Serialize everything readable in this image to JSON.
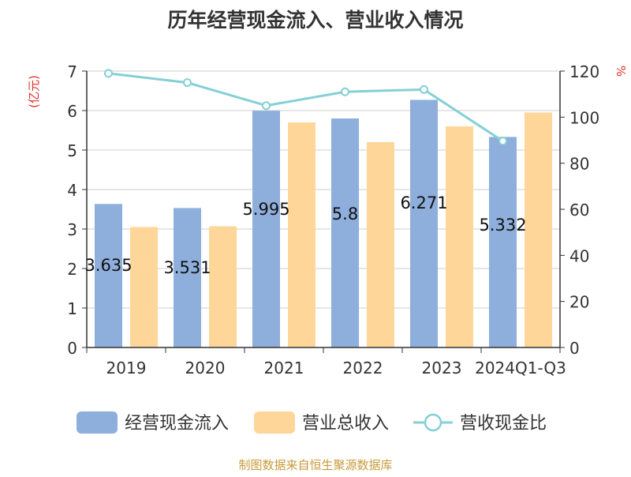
{
  "chart_data": {
    "type": "bar",
    "title": "历年经营现金流入、营业收入情况",
    "categories": [
      "2019",
      "2020",
      "2021",
      "2022",
      "2023",
      "2024Q1-Q3"
    ],
    "series": [
      {
        "name": "经营现金流入",
        "type": "bar",
        "axis": "left",
        "color": "#8eaedb",
        "values": [
          3.635,
          3.531,
          5.995,
          5.8,
          6.271,
          5.332
        ],
        "labels": [
          "3.635",
          "3.531",
          "5.995",
          "5.8",
          "6.271",
          "5.332"
        ]
      },
      {
        "name": "营业总收入",
        "type": "bar",
        "axis": "left",
        "color": "#ffd699",
        "values": [
          3.05,
          3.07,
          5.7,
          5.2,
          5.6,
          5.95
        ]
      },
      {
        "name": "营收现金比",
        "type": "line",
        "axis": "right",
        "color": "#84d0d5",
        "values": [
          119,
          115,
          105,
          111,
          112,
          89.6
        ]
      }
    ],
    "yaxis_left": {
      "unit": "(亿元)",
      "min": 0,
      "max": 7,
      "ticks": [
        "0",
        "1",
        "2",
        "3",
        "4",
        "5",
        "6",
        "7"
      ]
    },
    "yaxis_right": {
      "unit": "%",
      "min": 0,
      "max": 120,
      "ticks": [
        "0",
        "20",
        "40",
        "60",
        "80",
        "100",
        "120"
      ]
    },
    "grid": true,
    "legend_position": "bottom",
    "source": "制图数据来自恒生聚源数据库"
  }
}
